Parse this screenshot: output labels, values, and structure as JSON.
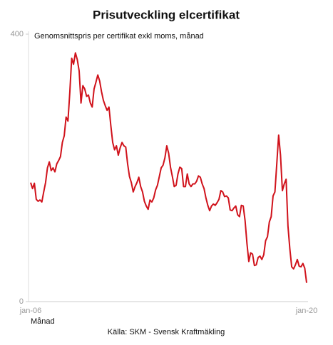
{
  "chart_data": {
    "type": "line",
    "title": "Prisutveckling elcertifikat",
    "subtitle": "Genomsnittspris per certifikat exkl moms, månad",
    "x_label": "Månad",
    "source": "Källa: SKM - Svensk Kraftmäkling",
    "categories": [
      "jan-06",
      null,
      null,
      null,
      null,
      null,
      null,
      null,
      null,
      null,
      null,
      null,
      null,
      null,
      null,
      null,
      null,
      null,
      null,
      null,
      null,
      null,
      null,
      null,
      null,
      null,
      null,
      null,
      null,
      null,
      null,
      null,
      null,
      null,
      null,
      null,
      null,
      null,
      null,
      null,
      null,
      null,
      null,
      null,
      null,
      null,
      null,
      null,
      null,
      null,
      null,
      null,
      null,
      null,
      null,
      null,
      null,
      null,
      null,
      null,
      null,
      null,
      null,
      null,
      null,
      null,
      null,
      null,
      null,
      null,
      null,
      null,
      null,
      null,
      null,
      null,
      null,
      null,
      null,
      null,
      null,
      null,
      null,
      null,
      null,
      null,
      null,
      null,
      null,
      null,
      null,
      null,
      null,
      null,
      null,
      null,
      null,
      null,
      null,
      null,
      null,
      null,
      null,
      null,
      null,
      null,
      null,
      null,
      null,
      null,
      null,
      null,
      null,
      null,
      null,
      null,
      null,
      null,
      null,
      null,
      null,
      null,
      null,
      null,
      null,
      null,
      null,
      null,
      null,
      null,
      null,
      null,
      null,
      null,
      null,
      null,
      null,
      null,
      null,
      null,
      null,
      null,
      null,
      null,
      null,
      null,
      null,
      null,
      "jan-20"
    ],
    "series": [
      {
        "name": "Genomsnittspris",
        "color": "#d0121b",
        "values": [
          178,
          169,
          177,
          153,
          150,
          152,
          149,
          164,
          178,
          200,
          209,
          196,
          200,
          194,
          206,
          211,
          217,
          238,
          248,
          276,
          270,
          313,
          364,
          355,
          372,
          362,
          345,
          297,
          323,
          318,
          307,
          309,
          297,
          291,
          318,
          328,
          339,
          330,
          314,
          301,
          293,
          286,
          291,
          263,
          238,
          227,
          233,
          219,
          230,
          238,
          233,
          231,
          206,
          187,
          178,
          164,
          172,
          178,
          186,
          172,
          164,
          150,
          143,
          138,
          152,
          149,
          155,
          167,
          174,
          187,
          200,
          204,
          215,
          233,
          222,
          201,
          187,
          172,
          174,
          191,
          201,
          199,
          172,
          172,
          191,
          176,
          172,
          176,
          176,
          180,
          188,
          186,
          176,
          169,
          155,
          144,
          136,
          143,
          146,
          144,
          148,
          153,
          166,
          164,
          157,
          158,
          155,
          137,
          136,
          140,
          143,
          130,
          127,
          144,
          143,
          121,
          87,
          60,
          73,
          71,
          54,
          55,
          66,
          68,
          63,
          70,
          91,
          97,
          119,
          127,
          158,
          164,
          206,
          249,
          219,
          166,
          176,
          183,
          113,
          79,
          52,
          49,
          55,
          63,
          53,
          52,
          57,
          50,
          28
        ]
      }
    ],
    "ylim": [
      0,
      400
    ],
    "yticks": [
      0,
      400
    ]
  }
}
